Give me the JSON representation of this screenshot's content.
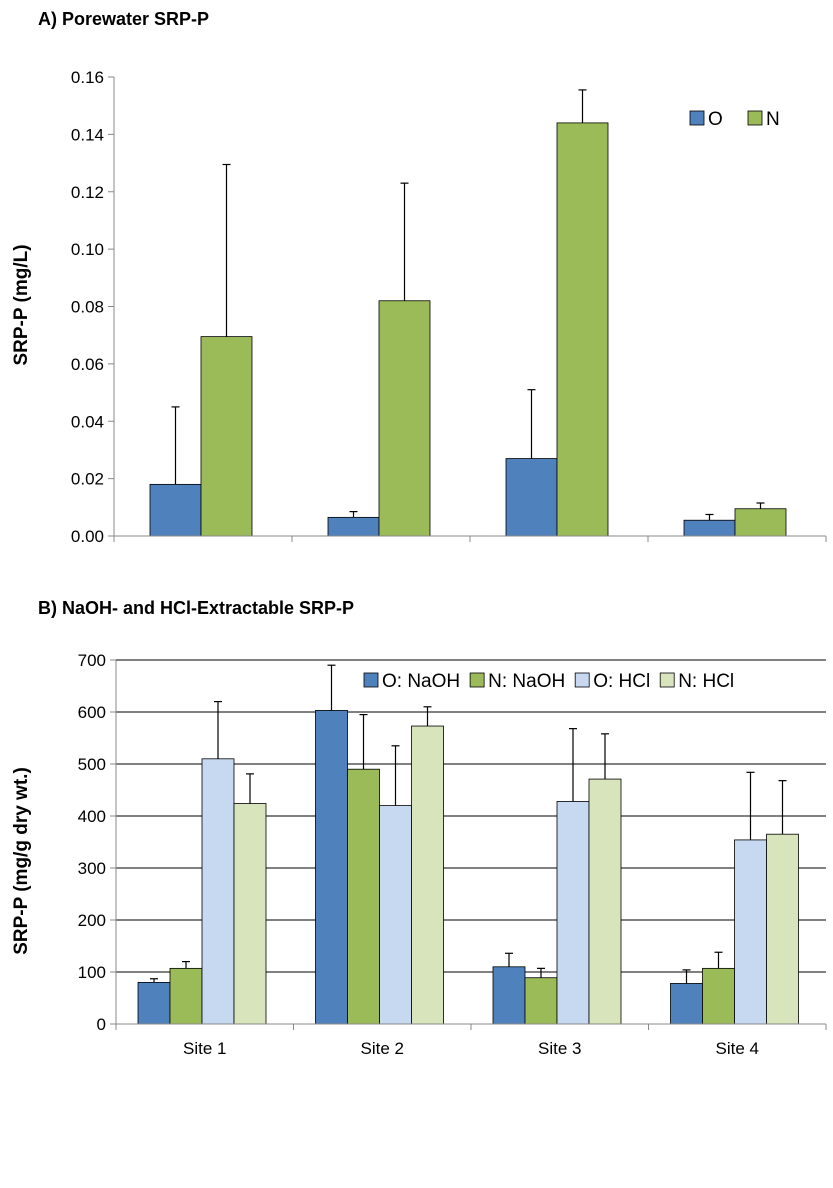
{
  "chart_data": [
    {
      "type": "bar",
      "title": "A) Porewater SRP-P",
      "xlabel": "",
      "ylabel": "SRP-P (mg/L)",
      "ylim": [
        0,
        0.16
      ],
      "yticks": [
        "0.00",
        "0.02",
        "0.04",
        "0.06",
        "0.08",
        "0.10",
        "0.12",
        "0.14",
        "0.16"
      ],
      "categories": [
        "",
        "",
        "",
        ""
      ],
      "grid": false,
      "legend_position": "top-right",
      "series": [
        {
          "name": "O",
          "color": "#4F81BD",
          "values": [
            0.018,
            0.0065,
            0.027,
            0.0055
          ],
          "errors": [
            0.027,
            0.002,
            0.024,
            0.002
          ]
        },
        {
          "name": "N",
          "color": "#9BBB59",
          "values": [
            0.0695,
            0.082,
            0.144,
            0.0095
          ],
          "errors": [
            0.06,
            0.041,
            0.0115,
            0.002
          ]
        }
      ]
    },
    {
      "type": "bar",
      "title": "B) NaOH- and HCl-Extractable SRP-P",
      "xlabel": "",
      "ylabel": "SRP-P (mg/g dry wt.)",
      "ylim": [
        0,
        700
      ],
      "yticks": [
        "0",
        "100",
        "200",
        "300",
        "400",
        "500",
        "600",
        "700"
      ],
      "categories": [
        "Site 1",
        "Site 2",
        "Site 3",
        "Site 4"
      ],
      "grid": true,
      "legend_position": "top-right",
      "series": [
        {
          "name": "O: NaOH",
          "color": "#4F81BD",
          "values": [
            80,
            603,
            110,
            78
          ],
          "errors": [
            7,
            87,
            26,
            26
          ]
        },
        {
          "name": "N: NaOH",
          "color": "#9BBB59",
          "values": [
            107,
            490,
            89,
            107
          ],
          "errors": [
            13,
            105,
            18,
            31
          ]
        },
        {
          "name": "O: HCl",
          "color": "#C6D9F1",
          "values": [
            510,
            420,
            428,
            354
          ],
          "errors": [
            110,
            115,
            140,
            130
          ]
        },
        {
          "name": "N: HCl",
          "color": "#D8E4BC",
          "values": [
            424,
            573,
            471,
            365
          ],
          "errors": [
            57,
            37,
            87,
            103
          ]
        }
      ]
    }
  ]
}
